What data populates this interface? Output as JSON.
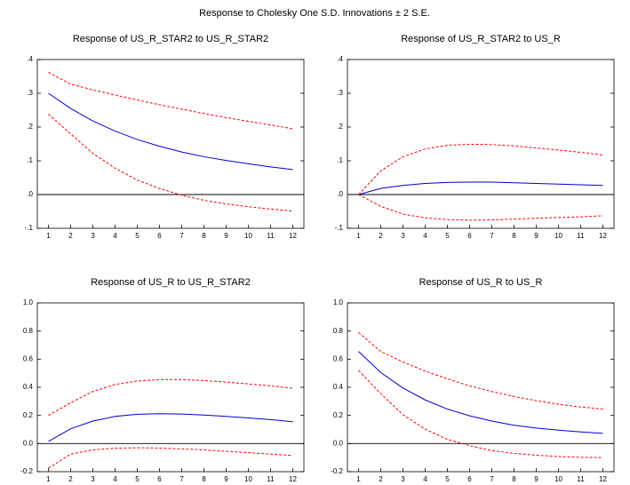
{
  "title": "Response to Cholesky One S.D. Innovations ± 2 S.E.",
  "chart_data": [
    {
      "type": "line",
      "title": "Response of US_R_STAR2 to US_R_STAR2",
      "x": [
        1,
        2,
        3,
        4,
        5,
        6,
        7,
        8,
        9,
        10,
        11,
        12
      ],
      "xlim": [
        0.5,
        12.5
      ],
      "xticks": [
        1,
        2,
        3,
        4,
        5,
        6,
        7,
        8,
        9,
        10,
        11,
        12
      ],
      "ylim": [
        -0.1,
        0.4
      ],
      "yticks": [
        {
          "value": -0.1,
          "label": "-.1"
        },
        {
          "value": 0,
          "label": ".0"
        },
        {
          "value": 0.1,
          "label": ".1"
        },
        {
          "value": 0.2,
          "label": ".2"
        },
        {
          "value": 0.3,
          "label": ".3"
        },
        {
          "value": 0.4,
          "label": ".4"
        }
      ],
      "zero_line": true,
      "series": [
        {
          "color": "#0000cc",
          "dashed": false,
          "values": [
            0.3,
            0.255,
            0.218,
            0.188,
            0.163,
            0.143,
            0.126,
            0.112,
            0.101,
            0.091,
            0.082,
            0.074
          ]
        },
        {
          "color": "#ff0000",
          "dashed": true,
          "values": [
            0.362,
            0.327,
            0.31,
            0.295,
            0.28,
            0.266,
            0.253,
            0.24,
            0.228,
            0.217,
            0.206,
            0.195
          ]
        },
        {
          "color": "#ff0000",
          "dashed": true,
          "values": [
            0.238,
            0.18,
            0.122,
            0.078,
            0.043,
            0.018,
            -0.002,
            -0.017,
            -0.028,
            -0.036,
            -0.043,
            -0.049
          ]
        }
      ]
    },
    {
      "type": "line",
      "title": "Response of US_R_STAR2 to US_R",
      "x": [
        1,
        2,
        3,
        4,
        5,
        6,
        7,
        8,
        9,
        10,
        11,
        12
      ],
      "xlim": [
        0.5,
        12.5
      ],
      "xticks": [
        1,
        2,
        3,
        4,
        5,
        6,
        7,
        8,
        9,
        10,
        11,
        12
      ],
      "ylim": [
        -0.1,
        0.4
      ],
      "yticks": [
        {
          "value": -0.1,
          "label": "-.1"
        },
        {
          "value": 0,
          "label": ".0"
        },
        {
          "value": 0.1,
          "label": ".1"
        },
        {
          "value": 0.2,
          "label": ".2"
        },
        {
          "value": 0.3,
          "label": ".3"
        },
        {
          "value": 0.4,
          "label": ".4"
        }
      ],
      "zero_line": true,
      "series": [
        {
          "color": "#0000cc",
          "dashed": false,
          "values": [
            0.0,
            0.018,
            0.027,
            0.033,
            0.036,
            0.037,
            0.037,
            0.035,
            0.033,
            0.031,
            0.029,
            0.027
          ]
        },
        {
          "color": "#ff0000",
          "dashed": true,
          "values": [
            0.0,
            0.07,
            0.112,
            0.135,
            0.146,
            0.149,
            0.148,
            0.144,
            0.138,
            0.132,
            0.125,
            0.117
          ]
        },
        {
          "color": "#ff0000",
          "dashed": true,
          "values": [
            0.0,
            -0.035,
            -0.058,
            -0.069,
            -0.074,
            -0.076,
            -0.075,
            -0.073,
            -0.07,
            -0.068,
            -0.066,
            -0.063
          ]
        }
      ]
    },
    {
      "type": "line",
      "title": "Response of US_R to US_R_STAR2",
      "x": [
        1,
        2,
        3,
        4,
        5,
        6,
        7,
        8,
        9,
        10,
        11,
        12
      ],
      "xlim": [
        0.5,
        12.5
      ],
      "xticks": [
        1,
        2,
        3,
        4,
        5,
        6,
        7,
        8,
        9,
        10,
        11,
        12
      ],
      "ylim": [
        -0.2,
        1.0
      ],
      "yticks": [
        {
          "value": -0.2,
          "label": "-0.2"
        },
        {
          "value": 0,
          "label": "0.0"
        },
        {
          "value": 0.2,
          "label": "0.2"
        },
        {
          "value": 0.4,
          "label": "0.4"
        },
        {
          "value": 0.6,
          "label": "0.6"
        },
        {
          "value": 0.8,
          "label": "0.8"
        },
        {
          "value": 1.0,
          "label": "1.0"
        }
      ],
      "zero_line": true,
      "series": [
        {
          "color": "#0000cc",
          "dashed": false,
          "values": [
            0.015,
            0.105,
            0.16,
            0.193,
            0.208,
            0.212,
            0.21,
            0.203,
            0.193,
            0.182,
            0.17,
            0.155
          ]
        },
        {
          "color": "#ff0000",
          "dashed": true,
          "values": [
            0.2,
            0.29,
            0.37,
            0.42,
            0.445,
            0.455,
            0.455,
            0.448,
            0.437,
            0.424,
            0.41,
            0.393
          ]
        },
        {
          "color": "#ff0000",
          "dashed": true,
          "values": [
            -0.175,
            -0.075,
            -0.045,
            -0.033,
            -0.03,
            -0.032,
            -0.038,
            -0.045,
            -0.055,
            -0.065,
            -0.075,
            -0.085
          ]
        }
      ]
    },
    {
      "type": "line",
      "title": "Response of US_R to US_R",
      "x": [
        1,
        2,
        3,
        4,
        5,
        6,
        7,
        8,
        9,
        10,
        11,
        12
      ],
      "xlim": [
        0.5,
        12.5
      ],
      "xticks": [
        1,
        2,
        3,
        4,
        5,
        6,
        7,
        8,
        9,
        10,
        11,
        12
      ],
      "ylim": [
        -0.2,
        1.0
      ],
      "yticks": [
        {
          "value": -0.2,
          "label": "-0.2"
        },
        {
          "value": 0,
          "label": "0.0"
        },
        {
          "value": 0.2,
          "label": "0.2"
        },
        {
          "value": 0.4,
          "label": "0.4"
        },
        {
          "value": 0.6,
          "label": "0.6"
        },
        {
          "value": 0.8,
          "label": "0.8"
        },
        {
          "value": 1.0,
          "label": "1.0"
        }
      ],
      "zero_line": true,
      "series": [
        {
          "color": "#0000cc",
          "dashed": false,
          "values": [
            0.655,
            0.505,
            0.395,
            0.31,
            0.245,
            0.197,
            0.16,
            0.13,
            0.11,
            0.095,
            0.083,
            0.072
          ]
        },
        {
          "color": "#ff0000",
          "dashed": true,
          "values": [
            0.79,
            0.655,
            0.58,
            0.515,
            0.46,
            0.41,
            0.37,
            0.335,
            0.305,
            0.28,
            0.26,
            0.245
          ]
        },
        {
          "color": "#ff0000",
          "dashed": true,
          "values": [
            0.52,
            0.355,
            0.205,
            0.102,
            0.03,
            -0.015,
            -0.05,
            -0.07,
            -0.083,
            -0.092,
            -0.098,
            -0.1
          ]
        }
      ]
    }
  ]
}
